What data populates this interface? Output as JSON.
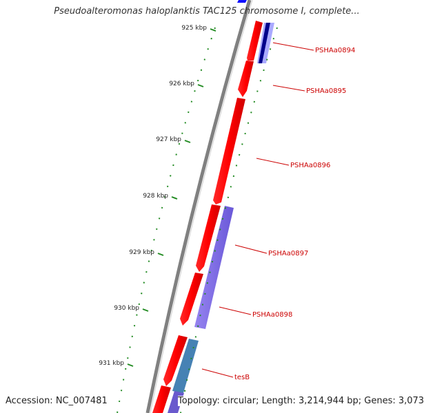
{
  "title": "Pseudoalteromonas haloplanktis TAC125 chromosome I, complete...",
  "accession": "Accession: NC_007481",
  "topology": "Topology: circular; Length: 3,214,944 bp; Genes: 3,073",
  "colors": {
    "backbone": "#808080",
    "forward_gene": "#ff0000",
    "reverse_gene": "#7b68ee",
    "rna_gene": "#4682b4",
    "tick": "#228b22",
    "label": "#cc0000"
  },
  "kbp_ticks": [
    {
      "kbp": 925,
      "label": "925 kbp"
    },
    {
      "kbp": 926,
      "label": "926 kbp"
    },
    {
      "kbp": 927,
      "label": "927 kbp"
    },
    {
      "kbp": 928,
      "label": "928 kbp"
    },
    {
      "kbp": 929,
      "label": "929 kbp"
    },
    {
      "kbp": 930,
      "label": "930 kbp"
    },
    {
      "kbp": 931,
      "label": "931 kbp"
    }
  ],
  "gene_labels": [
    "PSHAa0894",
    "PSHAa0895",
    "PSHAa0896",
    "PSHAa0897",
    "PSHAa0898",
    "tesB"
  ]
}
